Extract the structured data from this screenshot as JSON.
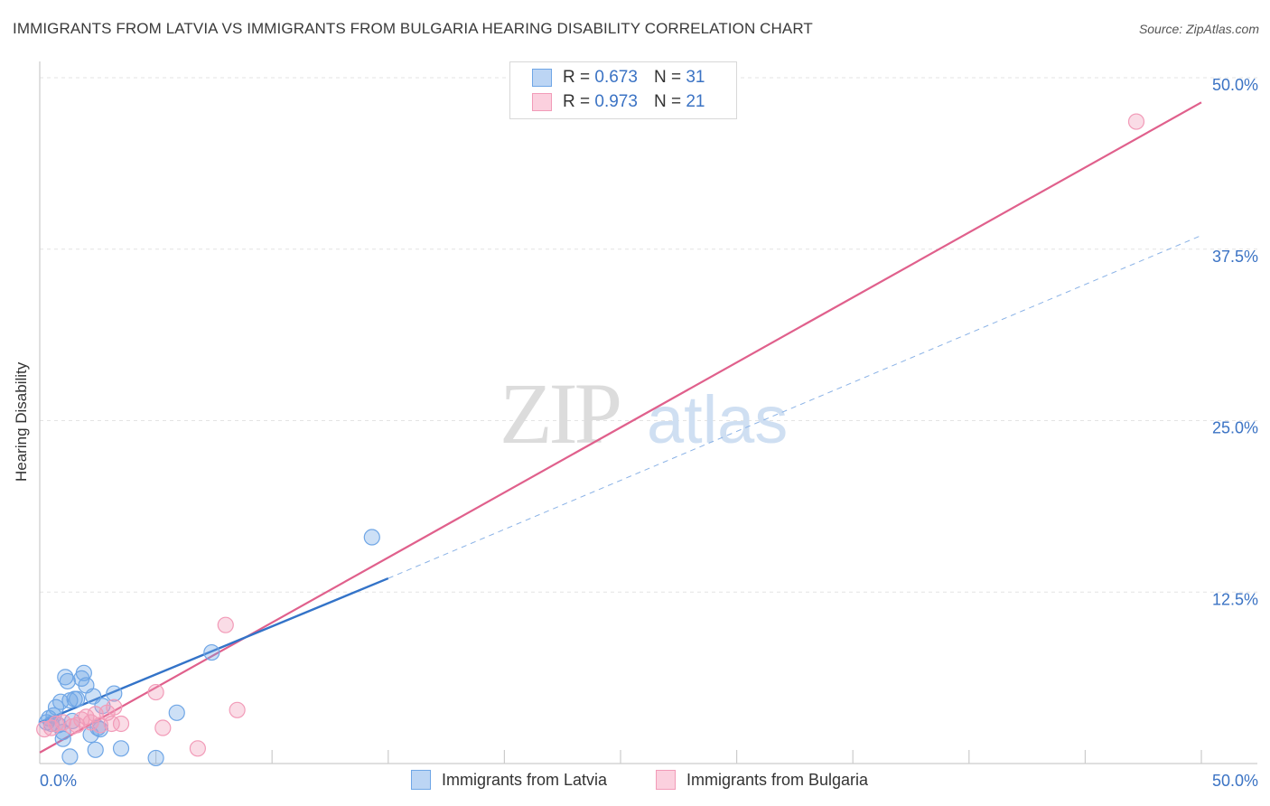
{
  "header": {
    "title": "IMMIGRANTS FROM LATVIA VS IMMIGRANTS FROM BULGARIA HEARING DISABILITY CORRELATION CHART",
    "source": "Source: ZipAtlas.com"
  },
  "watermark": {
    "zip": "ZIP",
    "atlas": "atlas"
  },
  "legend": {
    "rows": [
      {
        "r_label": "R =",
        "r_value": "0.673",
        "n_label": "N =",
        "n_value": "31",
        "color": "#6fa6e6"
      },
      {
        "r_label": "R =",
        "r_value": "0.973",
        "n_label": "N =",
        "n_value": "21",
        "color": "#f29bb8"
      }
    ]
  },
  "bottom_legend": {
    "latvia": "Immigrants from Latvia",
    "bulgaria": "Immigrants from Bulgaria"
  },
  "chart_data": {
    "type": "scatter",
    "title": "IMMIGRANTS FROM LATVIA VS IMMIGRANTS FROM BULGARIA HEARING DISABILITY CORRELATION CHART",
    "xlabel": "",
    "ylabel": "Hearing Disability",
    "xlim": [
      0,
      50
    ],
    "ylim": [
      0,
      50
    ],
    "x_tick_labels": [
      "0.0%",
      "50.0%"
    ],
    "y_tick_labels": [
      "12.5%",
      "25.0%",
      "37.5%",
      "50.0%"
    ],
    "y_ticks": [
      12.5,
      25.0,
      37.5,
      50.0
    ],
    "grid": true,
    "legend_position": "top-center",
    "series": [
      {
        "name": "Immigrants from Latvia",
        "color": "#6fa6e6",
        "line_color": "#3373c8",
        "points": [
          [
            0.3,
            3.0
          ],
          [
            0.4,
            3.3
          ],
          [
            0.5,
            2.9
          ],
          [
            0.6,
            3.5
          ],
          [
            0.7,
            4.1
          ],
          [
            0.8,
            2.8
          ],
          [
            0.9,
            4.5
          ],
          [
            1.0,
            1.8
          ],
          [
            1.0,
            2.3
          ],
          [
            1.1,
            6.3
          ],
          [
            1.2,
            6.0
          ],
          [
            1.3,
            4.6
          ],
          [
            1.4,
            3.1
          ],
          [
            1.5,
            4.7
          ],
          [
            1.6,
            4.7
          ],
          [
            1.8,
            6.2
          ],
          [
            1.9,
            6.6
          ],
          [
            2.0,
            5.7
          ],
          [
            2.2,
            2.1
          ],
          [
            2.3,
            4.9
          ],
          [
            2.4,
            1.0
          ],
          [
            2.5,
            2.6
          ],
          [
            2.6,
            2.5
          ],
          [
            2.7,
            4.2
          ],
          [
            3.2,
            5.1
          ],
          [
            3.5,
            1.1
          ],
          [
            5.0,
            0.4
          ],
          [
            5.9,
            3.7
          ],
          [
            7.4,
            8.1
          ],
          [
            14.3,
            16.5
          ],
          [
            1.3,
            0.5
          ]
        ],
        "trend_solid": [
          [
            0,
            3.0
          ],
          [
            15,
            13.5
          ]
        ],
        "trend_dashed": [
          [
            15,
            13.5
          ],
          [
            50,
            38.5
          ]
        ]
      },
      {
        "name": "Immigrants from Bulgaria",
        "color": "#f29bb8",
        "line_color": "#e0608c",
        "points": [
          [
            0.2,
            2.5
          ],
          [
            0.5,
            2.6
          ],
          [
            0.7,
            2.9
          ],
          [
            1.0,
            3.0
          ],
          [
            1.4,
            2.7
          ],
          [
            1.6,
            2.8
          ],
          [
            1.8,
            3.2
          ],
          [
            2.0,
            3.4
          ],
          [
            2.2,
            3.0
          ],
          [
            2.4,
            3.6
          ],
          [
            2.6,
            2.8
          ],
          [
            2.9,
            3.7
          ],
          [
            3.1,
            2.9
          ],
          [
            3.2,
            4.1
          ],
          [
            3.5,
            2.9
          ],
          [
            5.0,
            5.2
          ],
          [
            5.3,
            2.6
          ],
          [
            6.8,
            1.1
          ],
          [
            8.0,
            10.1
          ],
          [
            8.5,
            3.9
          ],
          [
            47.2,
            46.8
          ]
        ],
        "trend": [
          [
            0,
            0.8
          ],
          [
            50,
            48.2
          ]
        ]
      }
    ]
  }
}
